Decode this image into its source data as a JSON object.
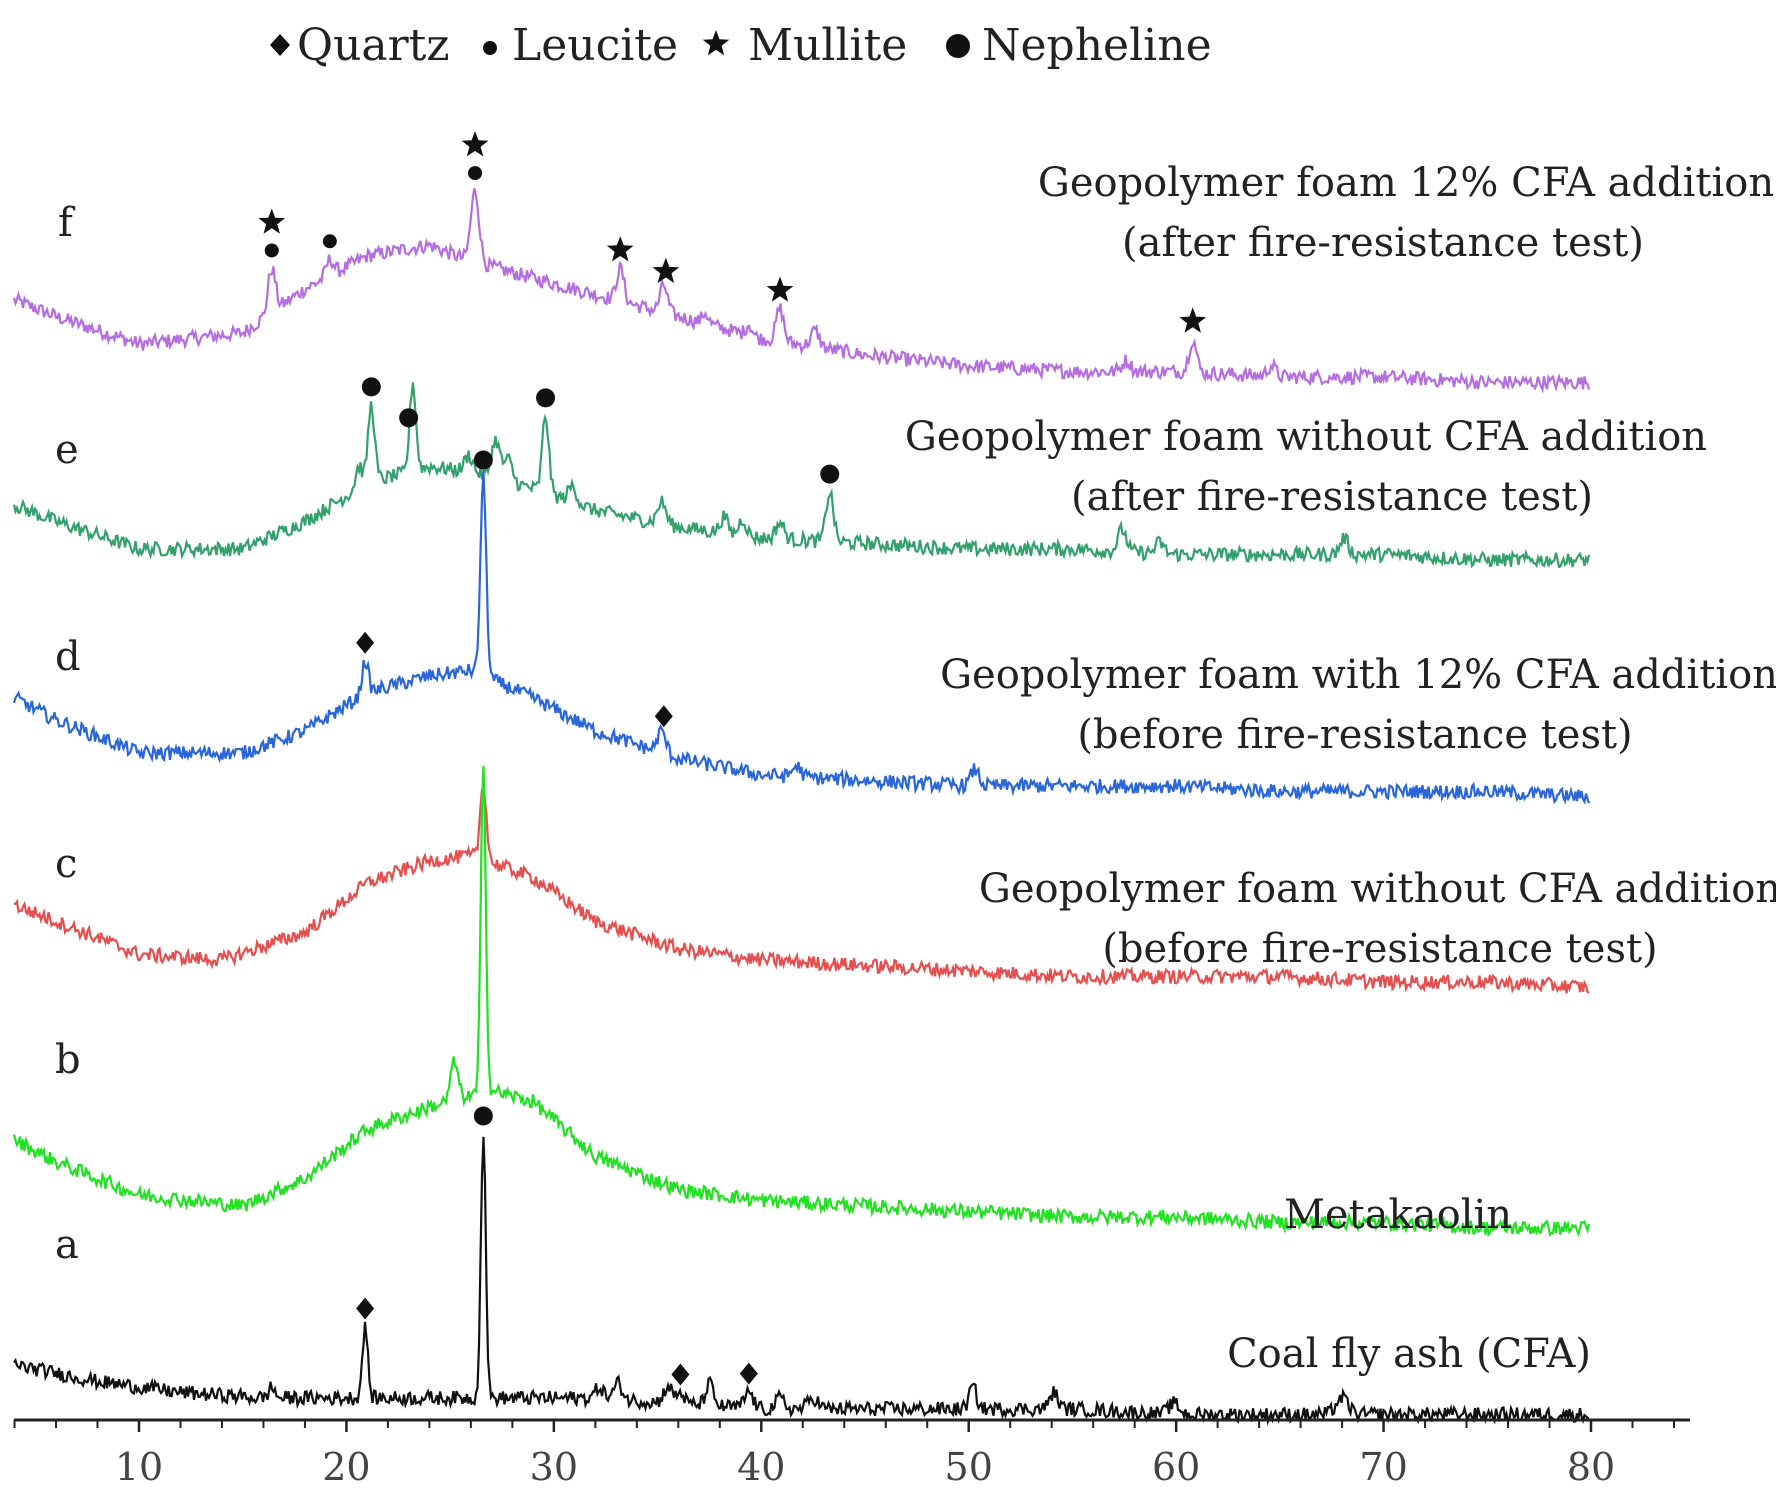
{
  "chart_data": {
    "type": "line",
    "title": "",
    "xlabel": "",
    "ylabel": "",
    "xlim": [
      4,
      84
    ],
    "x_ticks": [
      10,
      20,
      30,
      40,
      50,
      60,
      70,
      80
    ],
    "legend": {
      "placement": "top",
      "entries": [
        {
          "marker": "diamond",
          "name": "Quartz"
        },
        {
          "marker": "small-dot",
          "name": "Leucite"
        },
        {
          "marker": "star",
          "name": "Mullite"
        },
        {
          "marker": "big-dot",
          "name": "Nepheline"
        }
      ]
    },
    "series": [
      {
        "id": "f",
        "letter": "f",
        "color": "#b46ee0",
        "label_lines": [
          "Geopolymer foam 12% CFA addition",
          "(after fire-resistance test)"
        ],
        "baseline": [
          [
            4,
            0
          ],
          [
            6,
            -3
          ],
          [
            10,
            -8
          ],
          [
            15,
            -6
          ],
          [
            18,
            2
          ],
          [
            21,
            8
          ],
          [
            24,
            10
          ],
          [
            26,
            7
          ],
          [
            29,
            4
          ],
          [
            32,
            1
          ],
          [
            36,
            -3
          ],
          [
            40,
            -7
          ],
          [
            45,
            -10
          ],
          [
            50,
            -12
          ],
          [
            55,
            -13
          ],
          [
            60,
            -13
          ],
          [
            65,
            -14
          ],
          [
            70,
            -14
          ],
          [
            75,
            -15
          ],
          [
            80,
            -15
          ]
        ],
        "peaks": [
          [
            16.4,
            8,
            0.18
          ],
          [
            19.2,
            3,
            0.18
          ],
          [
            26.2,
            13,
            0.2
          ],
          [
            33.2,
            6,
            0.18
          ],
          [
            35.3,
            5,
            0.18
          ],
          [
            37.3,
            2,
            0.15
          ],
          [
            39.4,
            2,
            0.15
          ],
          [
            40.9,
            6,
            0.18
          ],
          [
            42.6,
            3,
            0.2
          ],
          [
            57.6,
            2,
            0.2
          ],
          [
            60.8,
            6,
            0.18
          ],
          [
            64.6,
            2,
            0.2
          ]
        ],
        "markers": [
          {
            "x": 16.4,
            "symbols": [
              "star",
              "small-dot"
            ]
          },
          {
            "x": 19.2,
            "symbols": [
              "small-dot"
            ]
          },
          {
            "x": 26.2,
            "symbols": [
              "star",
              "small-dot"
            ]
          },
          {
            "x": 33.2,
            "symbols": [
              "star"
            ]
          },
          {
            "x": 35.4,
            "symbols": [
              "star"
            ]
          },
          {
            "x": 40.9,
            "symbols": [
              "star"
            ]
          },
          {
            "x": 60.8,
            "symbols": [
              "star"
            ]
          }
        ]
      },
      {
        "id": "e",
        "letter": "e",
        "color": "#33a06e",
        "label_lines": [
          "Geopolymer foam without CFA addition",
          "(after fire-resistance test)"
        ],
        "baseline": [
          [
            4,
            0
          ],
          [
            6,
            -3
          ],
          [
            10,
            -8
          ],
          [
            15,
            -8
          ],
          [
            18,
            -3
          ],
          [
            21,
            4
          ],
          [
            24,
            7
          ],
          [
            26,
            6
          ],
          [
            29,
            3
          ],
          [
            32,
            -1
          ],
          [
            36,
            -4
          ],
          [
            40,
            -6
          ],
          [
            45,
            -7
          ],
          [
            50,
            -8
          ],
          [
            55,
            -8
          ],
          [
            60,
            -9
          ],
          [
            65,
            -9
          ],
          [
            70,
            -9
          ],
          [
            75,
            -10
          ],
          [
            80,
            -10
          ]
        ],
        "peaks": [
          [
            20.6,
            4,
            0.16
          ],
          [
            21.2,
            14,
            0.16
          ],
          [
            23.2,
            16,
            0.15
          ],
          [
            25.9,
            3,
            0.2
          ],
          [
            27.2,
            7,
            0.2
          ],
          [
            27.8,
            4,
            0.2
          ],
          [
            29.6,
            14,
            0.16
          ],
          [
            30.9,
            3,
            0.2
          ],
          [
            35.2,
            4,
            0.2
          ],
          [
            38.2,
            3,
            0.18
          ],
          [
            39.1,
            3,
            0.18
          ],
          [
            40.9,
            3,
            0.2
          ],
          [
            43.3,
            9,
            0.18
          ],
          [
            57.4,
            4,
            0.2
          ],
          [
            59.2,
            2,
            0.2
          ],
          [
            68.1,
            3,
            0.2
          ]
        ],
        "markers": [
          {
            "x": 21.2,
            "symbols": [
              "big-dot"
            ]
          },
          {
            "x": 23.0,
            "symbols": [
              "big-dot"
            ]
          },
          {
            "x": 29.6,
            "symbols": [
              "big-dot"
            ]
          },
          {
            "x": 43.3,
            "symbols": [
              "big-dot"
            ]
          }
        ]
      },
      {
        "id": "d",
        "letter": "d",
        "color": "#2a66d8",
        "label_lines": [
          "Geopolymer foam with 12% CFA addition",
          "(before fire-resistance test)"
        ],
        "baseline": [
          [
            4,
            4
          ],
          [
            6,
            0
          ],
          [
            10,
            -6
          ],
          [
            15,
            -6
          ],
          [
            18,
            -2
          ],
          [
            21,
            5
          ],
          [
            24,
            8
          ],
          [
            26,
            9
          ],
          [
            29,
            4
          ],
          [
            32,
            -2
          ],
          [
            36,
            -7
          ],
          [
            40,
            -10
          ],
          [
            45,
            -11
          ],
          [
            50,
            -12
          ],
          [
            55,
            -12
          ],
          [
            60,
            -12
          ],
          [
            65,
            -13
          ],
          [
            70,
            -13
          ],
          [
            75,
            -13
          ],
          [
            80,
            -14
          ]
        ],
        "peaks": [
          [
            20.9,
            6,
            0.15
          ],
          [
            26.6,
            36,
            0.14
          ],
          [
            35.2,
            4,
            0.2
          ],
          [
            41.7,
            2,
            0.2
          ],
          [
            50.3,
            3,
            0.2
          ]
        ],
        "markers": [
          {
            "x": 20.9,
            "symbols": [
              "diamond"
            ]
          },
          {
            "x": 26.6,
            "symbols": [
              "big-dot"
            ]
          },
          {
            "x": 35.3,
            "symbols": [
              "diamond"
            ]
          }
        ]
      },
      {
        "id": "c",
        "letter": "c",
        "color": "#e45050",
        "label_lines": [
          "Geopolymer foam without CFA addition",
          "(before fire-resistance test)"
        ],
        "baseline": [
          [
            4,
            0
          ],
          [
            6,
            -3
          ],
          [
            10,
            -9
          ],
          [
            14,
            -10
          ],
          [
            18,
            -5
          ],
          [
            21,
            4
          ],
          [
            24,
            8
          ],
          [
            26,
            9
          ],
          [
            29,
            5
          ],
          [
            32,
            -3
          ],
          [
            36,
            -8
          ],
          [
            40,
            -10
          ],
          [
            45,
            -11
          ],
          [
            50,
            -12
          ],
          [
            55,
            -13
          ],
          [
            60,
            -13
          ],
          [
            65,
            -13
          ],
          [
            70,
            -14
          ],
          [
            75,
            -14
          ],
          [
            80,
            -15
          ]
        ],
        "peaks": [
          [
            26.6,
            14,
            0.15
          ]
        ],
        "markers": []
      },
      {
        "id": "b",
        "letter": "b",
        "color": "#22e022",
        "label_lines": [
          "Metakaolin"
        ],
        "baseline": [
          [
            4,
            0
          ],
          [
            6,
            -4
          ],
          [
            10,
            -10
          ],
          [
            15,
            -12
          ],
          [
            18,
            -7
          ],
          [
            21,
            2
          ],
          [
            24,
            6
          ],
          [
            27,
            9
          ],
          [
            29,
            7
          ],
          [
            32,
            -3
          ],
          [
            36,
            -9
          ],
          [
            40,
            -11
          ],
          [
            45,
            -12
          ],
          [
            50,
            -13
          ],
          [
            55,
            -14
          ],
          [
            60,
            -14
          ],
          [
            65,
            -15
          ],
          [
            70,
            -15
          ],
          [
            75,
            -16
          ],
          [
            80,
            -16
          ]
        ],
        "peaks": [
          [
            25.2,
            7,
            0.18
          ],
          [
            26.6,
            60,
            0.12
          ]
        ],
        "markers": []
      },
      {
        "id": "a",
        "letter": "a",
        "color": "#111111",
        "label_lines": [
          "Coal fly ash (CFA)"
        ],
        "baseline": [
          [
            4,
            0
          ],
          [
            8,
            -3
          ],
          [
            12,
            -5
          ],
          [
            16,
            -6
          ],
          [
            20,
            -6
          ],
          [
            24,
            -6
          ],
          [
            28,
            -6
          ],
          [
            32,
            -6
          ],
          [
            36,
            -7
          ],
          [
            40,
            -8
          ],
          [
            45,
            -8
          ],
          [
            50,
            -8
          ],
          [
            55,
            -8
          ],
          [
            60,
            -9
          ],
          [
            65,
            -9
          ],
          [
            70,
            -9
          ],
          [
            75,
            -9
          ],
          [
            80,
            -9
          ]
        ],
        "peaks": [
          [
            16.4,
            2,
            0.15
          ],
          [
            20.9,
            13,
            0.13
          ],
          [
            26.6,
            48,
            0.12
          ],
          [
            32.2,
            2,
            0.2
          ],
          [
            33.1,
            3,
            0.2
          ],
          [
            35.5,
            3,
            0.2
          ],
          [
            36.1,
            2,
            0.18
          ],
          [
            37.5,
            4,
            0.18
          ],
          [
            39.4,
            3,
            0.2
          ],
          [
            40.9,
            2,
            0.2
          ],
          [
            42.5,
            2,
            0.25
          ],
          [
            50.2,
            4,
            0.18
          ],
          [
            54.1,
            3,
            0.2
          ],
          [
            59.9,
            2,
            0.25
          ],
          [
            68.0,
            3,
            0.3
          ]
        ],
        "markers": [
          {
            "x": 20.9,
            "symbols": [
              "diamond"
            ]
          },
          {
            "x": 26.6,
            "symbols": [
              "big-dot"
            ]
          },
          {
            "x": 36.1,
            "symbols": [
              "diamond"
            ]
          },
          {
            "x": 39.4,
            "symbols": [
              "diamond"
            ]
          }
        ]
      }
    ]
  }
}
